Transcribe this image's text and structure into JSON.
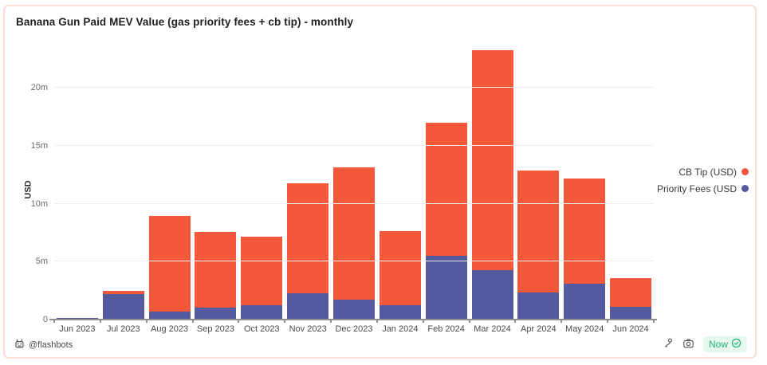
{
  "card": {
    "title": "Banana Gun Paid MEV Value (gas priority fees + cb tip) - monthly",
    "footer": {
      "attribution": "@flashbots",
      "refresh_badge": "Now"
    }
  },
  "colors": {
    "cb_tip": "#f4583b",
    "priority_fees": "#555a9e",
    "card_border": "#fadcd7",
    "badge_bg": "#e7f8ef",
    "badge_text": "#1fb576",
    "gridline": "#eeeeee",
    "axis": "#8f8f8f"
  },
  "chart_data": {
    "type": "bar",
    "stacked": true,
    "title": "Banana Gun Paid MEV Value (gas priority fees + cb tip) - monthly",
    "xlabel": "",
    "ylabel": "USD",
    "unit": "millions USD",
    "grid": true,
    "legend_position": "right",
    "categories": [
      "Jun 2023",
      "Jul 2023",
      "Aug 2023",
      "Sep 2023",
      "Oct 2023",
      "Nov 2023",
      "Dec 2023",
      "Jan 2024",
      "Feb 2024",
      "Mar 2024",
      "Apr 2024",
      "May 2024",
      "Jun 2024"
    ],
    "series": [
      {
        "name": "CB Tip (USD)",
        "color": "#f4583b",
        "values": [
          0.03,
          0.27,
          8.25,
          6.55,
          5.9,
          9.5,
          11.4,
          6.4,
          11.5,
          18.95,
          10.5,
          9.1,
          2.45
        ]
      },
      {
        "name": "Priority Fees (USD",
        "color": "#555a9e",
        "values": [
          0.12,
          2.2,
          0.7,
          1.05,
          1.25,
          2.3,
          1.75,
          1.25,
          5.5,
          4.3,
          2.35,
          3.1,
          1.1
        ]
      }
    ],
    "totals": [
      0.15,
      2.47,
      8.95,
      7.6,
      7.15,
      11.8,
      13.15,
      7.65,
      17.0,
      23.25,
      12.85,
      12.2,
      3.55
    ],
    "y_ticks": [
      {
        "value": 0,
        "label": "0"
      },
      {
        "value": 5,
        "label": "5m"
      },
      {
        "value": 10,
        "label": "10m"
      },
      {
        "value": 15,
        "label": "15m"
      },
      {
        "value": 20,
        "label": "20m"
      }
    ],
    "ylim": [
      0,
      23.4
    ]
  }
}
